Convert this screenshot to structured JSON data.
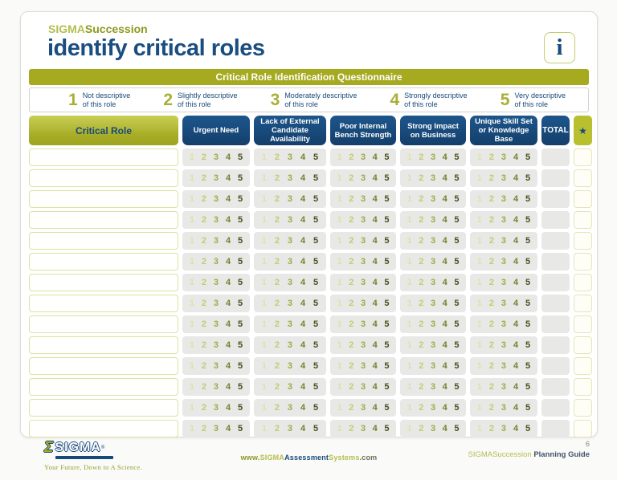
{
  "page": {
    "brand_prefix": "SIGMA",
    "brand_suffix": "Succession",
    "title": "identify critical roles",
    "info_icon": "i"
  },
  "questionnaire": {
    "bar_title": "Critical Role Identification Questionnaire",
    "legend": [
      {
        "value": "1",
        "label_line1": "Not descriptive",
        "label_line2": "of this role"
      },
      {
        "value": "2",
        "label_line1": "Slightly descriptive",
        "label_line2": "of this role"
      },
      {
        "value": "3",
        "label_line1": "Moderately descriptive",
        "label_line2": "of this role"
      },
      {
        "value": "4",
        "label_line1": "Strongly descriptive",
        "label_line2": "of this role"
      },
      {
        "value": "5",
        "label_line1": "Very descriptive",
        "label_line2": "of this role"
      }
    ]
  },
  "table": {
    "role_header": "Critical Role",
    "criteria_headers": [
      "Urgent Need",
      "Lack of External Candidate Availability",
      "Poor Internal Bench Strength",
      "Strong Impact on Business",
      "Unique Skill Set or Knowledge Base"
    ],
    "total_header": "TOTAL",
    "star_header": "★",
    "rating_scale": [
      "1",
      "2",
      "3",
      "4",
      "5"
    ],
    "row_count": 14,
    "row_values": []
  },
  "footer": {
    "logo": {
      "sigma_glyph": "Σ",
      "logo_text": "SIGMA",
      "registered_mark": "®",
      "tagline": "Your Future, Down to A Science."
    },
    "website": {
      "part1": "www.",
      "part2": "SIGMA",
      "part3": "Assessment",
      "part4": "Systems",
      "part5": ".com"
    },
    "page_number": "6",
    "guide_prefix": "SIGMASuccession",
    "guide_suffix": " Planning Guide"
  },
  "colors": {
    "olive": "#a5aa1f",
    "olive_light": "#b6bd50",
    "navy": "#174a7c",
    "rating_gradient": [
      "#dde2ac",
      "#c3cc74",
      "#9dab49",
      "#71832f",
      "#44531f"
    ],
    "cell_gray": "#e8e8e6"
  }
}
